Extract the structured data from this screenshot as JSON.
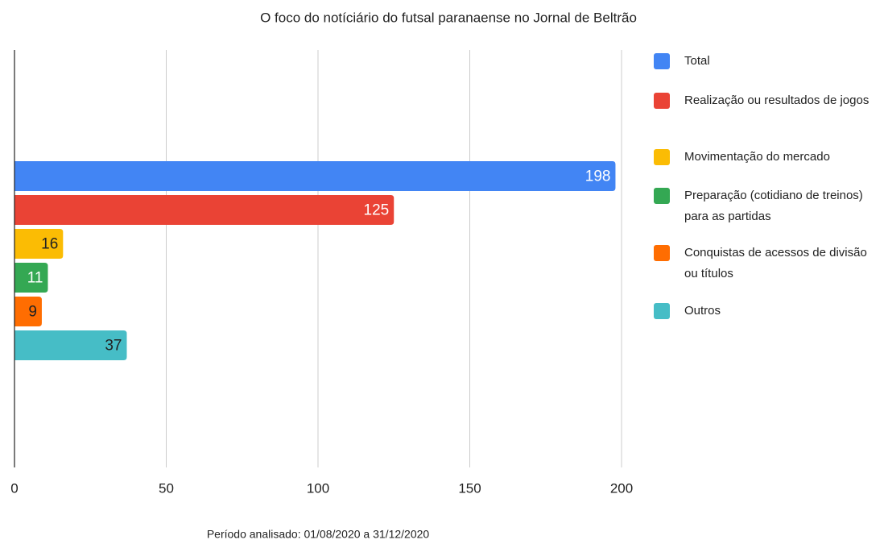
{
  "chart_data": {
    "type": "hbar",
    "title": "O foco do notíciário do futsal paranaense no Jornal de Beltrão",
    "annotation": "Período analisado: 01/08/2020 a 31/12/2020",
    "categories": [
      null
    ],
    "series": [
      {
        "name": "Total",
        "color": "#4285f4",
        "label_color": "#ffffff",
        "values": [
          198
        ]
      },
      {
        "name": "Realização ou resultados de jogos",
        "color": "#ea4335",
        "label_color": "#ffffff",
        "values": [
          125
        ]
      },
      {
        "name": "Movimentação do mercado",
        "color": "#fbbc04",
        "label_color": "#222222",
        "values": [
          16
        ]
      },
      {
        "name": "Preparação (cotidiano de treinos) para as partidas",
        "color": "#34a853",
        "label_color": "#ffffff",
        "values": [
          11
        ]
      },
      {
        "name": "Conquistas de acessos de divisão ou títulos",
        "color": "#ff6d01",
        "label_color": "#222222",
        "values": [
          9
        ]
      },
      {
        "name": "Outros",
        "color": "#46bdc6",
        "label_color": "#222222",
        "values": [
          37
        ]
      }
    ],
    "xlim": [
      0,
      200
    ],
    "xticks": [
      0,
      50,
      100,
      150,
      200
    ],
    "grid": true,
    "legend": "right"
  }
}
